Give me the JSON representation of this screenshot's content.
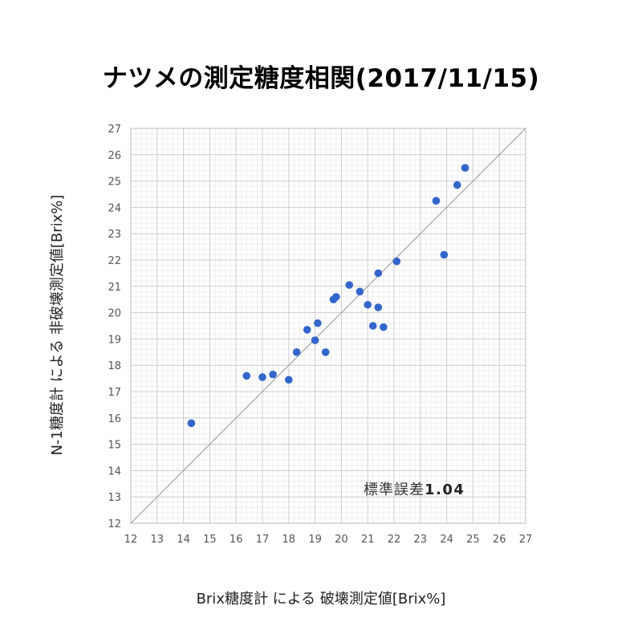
{
  "chart_data": {
    "type": "scatter",
    "title": "ナツメの測定糖度相関(2017/11/15)",
    "xlabel": "Brix糖度計 による 破壊測定値[Brix%]",
    "ylabel": "N-1糖度計 による 非破壊測定値[Brix%]",
    "xlim": [
      12,
      27
    ],
    "ylim": [
      12,
      27
    ],
    "xticks": [
      12,
      13,
      14,
      15,
      16,
      17,
      18,
      19,
      20,
      21,
      22,
      23,
      24,
      25,
      26,
      27
    ],
    "yticks": [
      12,
      13,
      14,
      15,
      16,
      17,
      18,
      19,
      20,
      21,
      22,
      23,
      24,
      25,
      26,
      27
    ],
    "grid": true,
    "reference_line": [
      [
        12,
        12
      ],
      [
        27,
        27
      ]
    ],
    "annotation": {
      "label": "標準誤差",
      "value": "1.04"
    },
    "point_color": "#3366cc",
    "points": [
      {
        "x": 14.3,
        "y": 15.8
      },
      {
        "x": 16.4,
        "y": 17.6
      },
      {
        "x": 17.0,
        "y": 17.55
      },
      {
        "x": 17.4,
        "y": 17.65
      },
      {
        "x": 18.0,
        "y": 17.45
      },
      {
        "x": 18.3,
        "y": 18.5
      },
      {
        "x": 18.7,
        "y": 19.35
      },
      {
        "x": 19.0,
        "y": 18.95
      },
      {
        "x": 19.1,
        "y": 19.6
      },
      {
        "x": 19.4,
        "y": 18.5
      },
      {
        "x": 19.7,
        "y": 20.5
      },
      {
        "x": 19.8,
        "y": 20.6
      },
      {
        "x": 20.3,
        "y": 21.05
      },
      {
        "x": 20.7,
        "y": 20.8
      },
      {
        "x": 21.0,
        "y": 20.3
      },
      {
        "x": 21.2,
        "y": 19.5
      },
      {
        "x": 21.4,
        "y": 21.5
      },
      {
        "x": 21.4,
        "y": 20.2
      },
      {
        "x": 21.6,
        "y": 19.45
      },
      {
        "x": 22.1,
        "y": 21.95
      },
      {
        "x": 23.6,
        "y": 24.25
      },
      {
        "x": 23.9,
        "y": 22.2
      },
      {
        "x": 24.4,
        "y": 24.85
      },
      {
        "x": 24.7,
        "y": 25.5
      }
    ]
  }
}
